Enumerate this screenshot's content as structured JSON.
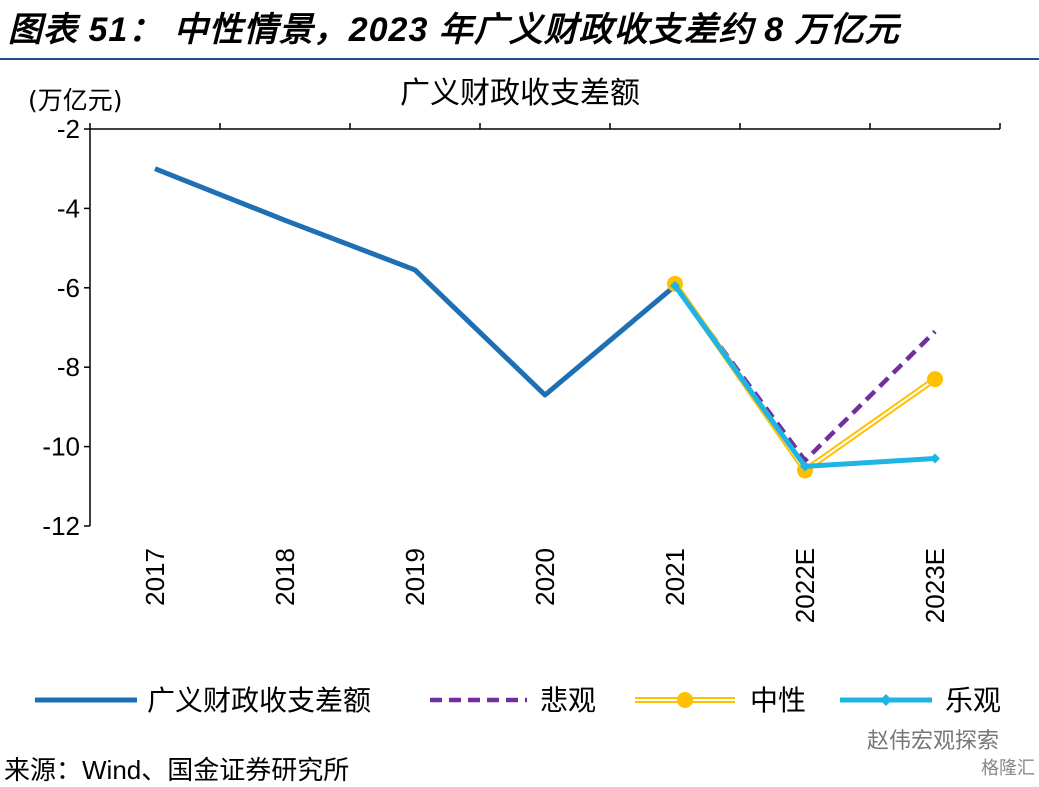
{
  "figure": {
    "title": "图表 51： 中性情景，2023 年广义财政收支差约 8 万亿元",
    "source": "来源：Wind、国金证券研究所",
    "watermark": "赵伟宏观探索",
    "watermark2": "格隆汇"
  },
  "chart_data": {
    "type": "line",
    "title": "广义财政收支差额",
    "ylabel": "(万亿元)",
    "xlabel": "",
    "categories": [
      "2017",
      "2018",
      "2019",
      "2020",
      "2021",
      "2022E",
      "2023E"
    ],
    "ylim": [
      -12,
      -2
    ],
    "yticks": [
      -2,
      -4,
      -6,
      -8,
      -10,
      -12
    ],
    "grid": false,
    "legend_position": "bottom",
    "series": [
      {
        "name": "广义财政收支差额",
        "color": "#1f6fb5",
        "style": "solid",
        "marker": "none",
        "values": [
          -3.0,
          -4.3,
          -5.55,
          -8.7,
          -5.95,
          null,
          null
        ]
      },
      {
        "name": "悲观",
        "color": "#7030a0",
        "style": "dashed",
        "marker": "none",
        "values": [
          null,
          null,
          null,
          null,
          -5.95,
          -10.35,
          -7.1
        ]
      },
      {
        "name": "中性",
        "color": "#ffc000",
        "style": "double",
        "marker": "circle",
        "values": [
          null,
          null,
          null,
          null,
          -5.9,
          -10.6,
          -8.3
        ]
      },
      {
        "name": "乐观",
        "color": "#1fb4e6",
        "style": "solid",
        "marker": "diamond",
        "values": [
          null,
          null,
          null,
          null,
          -5.95,
          -10.5,
          -10.3
        ]
      }
    ]
  }
}
